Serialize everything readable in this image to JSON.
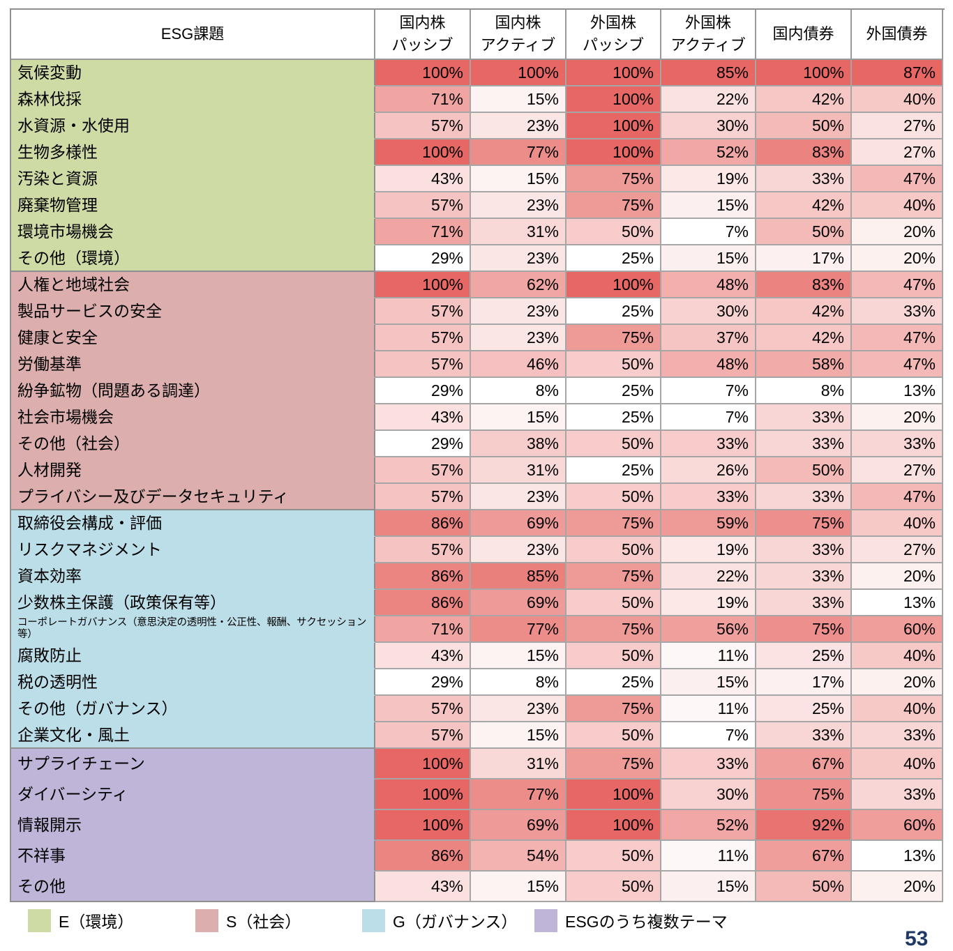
{
  "header": {
    "issue_label": "ESG課題"
  },
  "chart_data": {
    "type": "heatmap",
    "value_format": "percent",
    "columns": [
      {
        "lines": [
          "国内株",
          "パッシブ"
        ]
      },
      {
        "lines": [
          "国内株",
          "アクティブ"
        ]
      },
      {
        "lines": [
          "外国株",
          "パッシブ"
        ]
      },
      {
        "lines": [
          "外国株",
          "アクティブ"
        ]
      },
      {
        "lines": [
          "国内債券"
        ]
      },
      {
        "lines": [
          "外国債券"
        ]
      }
    ],
    "color_scale": {
      "mode": "per-column-min-max",
      "min_color": "#FFFFFF",
      "max_color": "#E66763"
    },
    "sections": [
      {
        "name": "E（環境）",
        "color": "#CEDBA4",
        "rows": [
          {
            "label": "気候変動",
            "values": [
              100,
              100,
              100,
              85,
              100,
              87
            ]
          },
          {
            "label": "森林伐採",
            "values": [
              71,
              15,
              100,
              22,
              42,
              40
            ]
          },
          {
            "label": "水資源・水使用",
            "values": [
              57,
              23,
              100,
              30,
              50,
              27
            ]
          },
          {
            "label": "生物多様性",
            "values": [
              100,
              77,
              100,
              52,
              83,
              27
            ]
          },
          {
            "label": "汚染と資源",
            "values": [
              43,
              15,
              75,
              19,
              33,
              47
            ]
          },
          {
            "label": "廃棄物管理",
            "values": [
              57,
              23,
              75,
              15,
              42,
              40
            ]
          },
          {
            "label": "環境市場機会",
            "values": [
              71,
              31,
              50,
              7,
              50,
              20
            ]
          },
          {
            "label": "その他（環境）",
            "values": [
              29,
              23,
              25,
              15,
              17,
              20
            ]
          }
        ]
      },
      {
        "name": "S（社会）",
        "color": "#DCAEAE",
        "rows": [
          {
            "label": "人権と地域社会",
            "values": [
              100,
              62,
              100,
              48,
              83,
              47
            ]
          },
          {
            "label": "製品サービスの安全",
            "values": [
              57,
              23,
              25,
              30,
              42,
              33
            ]
          },
          {
            "label": "健康と安全",
            "values": [
              57,
              23,
              75,
              37,
              42,
              47
            ]
          },
          {
            "label": "労働基準",
            "values": [
              57,
              46,
              50,
              48,
              58,
              47
            ]
          },
          {
            "label": "紛争鉱物（問題ある調達）",
            "values": [
              29,
              8,
              25,
              7,
              8,
              13
            ]
          },
          {
            "label": "社会市場機会",
            "values": [
              43,
              15,
              25,
              7,
              33,
              20
            ]
          },
          {
            "label": "その他（社会）",
            "values": [
              29,
              38,
              50,
              33,
              33,
              33
            ]
          },
          {
            "label": "人材開発",
            "values": [
              57,
              31,
              25,
              26,
              50,
              27
            ]
          },
          {
            "label": "プライバシー及びデータセキュリティ",
            "values": [
              57,
              23,
              50,
              33,
              33,
              47
            ]
          }
        ]
      },
      {
        "name": "G（ガバナンス）",
        "color": "#BCDEE9",
        "rows": [
          {
            "label": "取締役会構成・評価",
            "values": [
              86,
              69,
              75,
              59,
              75,
              40
            ]
          },
          {
            "label": "リスクマネジメント",
            "values": [
              57,
              23,
              50,
              19,
              33,
              27
            ]
          },
          {
            "label": "資本効率",
            "values": [
              86,
              85,
              75,
              22,
              33,
              20
            ]
          },
          {
            "label": "少数株主保護（政策保有等）",
            "values": [
              86,
              69,
              50,
              19,
              33,
              13
            ]
          },
          {
            "label": "コーポレートガバナンス（意思決定の透明性・公正性、報酬、サクセッション等）",
            "values": [
              71,
              77,
              75,
              56,
              75,
              60
            ]
          },
          {
            "label": "腐敗防止",
            "values": [
              43,
              15,
              50,
              11,
              25,
              40
            ]
          },
          {
            "label": "税の透明性",
            "values": [
              29,
              8,
              25,
              15,
              17,
              20
            ]
          },
          {
            "label": "その他（ガバナンス）",
            "values": [
              57,
              23,
              75,
              11,
              25,
              40
            ]
          },
          {
            "label": "企業文化・風土",
            "values": [
              57,
              15,
              50,
              7,
              33,
              33
            ]
          }
        ]
      },
      {
        "name": "ESGのうち複数テーマ",
        "color": "#BFB5D8",
        "rows": [
          {
            "label": "サプライチェーン",
            "values": [
              100,
              31,
              75,
              33,
              67,
              40
            ]
          },
          {
            "label": "ダイバーシティ",
            "values": [
              100,
              77,
              100,
              30,
              75,
              33
            ]
          },
          {
            "label": "情報開示",
            "values": [
              100,
              69,
              100,
              52,
              92,
              60
            ]
          },
          {
            "label": "不祥事",
            "values": [
              86,
              54,
              50,
              11,
              67,
              13
            ]
          },
          {
            "label": "その他",
            "values": [
              43,
              15,
              50,
              15,
              50,
              20
            ]
          }
        ]
      }
    ]
  },
  "legend": [
    {
      "label": "E（環境）",
      "color": "#CEDBA4"
    },
    {
      "label": "S（社会）",
      "color": "#DCAEAE"
    },
    {
      "label": "G（ガバナンス）",
      "color": "#BCDEE9"
    },
    {
      "label": "ESGのうち複数テーマ",
      "color": "#BFB5D8"
    }
  ],
  "page_number": "53"
}
